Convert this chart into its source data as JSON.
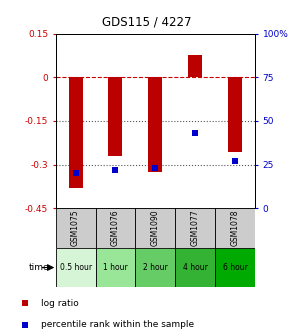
{
  "title": "GDS115 / 4227",
  "categories": [
    "GSM1075",
    "GSM1076",
    "GSM1090",
    "GSM1077",
    "GSM1078"
  ],
  "time_labels": [
    "0.5 hour",
    "1 hour",
    "2 hour",
    "4 hour",
    "6 hour"
  ],
  "time_colors": [
    "#d6f5d6",
    "#99e699",
    "#66cc66",
    "#33b233",
    "#00aa00"
  ],
  "log_ratios": [
    -0.38,
    -0.27,
    -0.325,
    0.075,
    -0.255
  ],
  "percentile_ranks": [
    20,
    22,
    23,
    43,
    27
  ],
  "bar_color": "#bb0000",
  "dot_color": "#0000cc",
  "left_ylim": [
    -0.45,
    0.15
  ],
  "right_ylim": [
    0,
    100
  ],
  "left_yticks": [
    0.15,
    0,
    -0.15,
    -0.3,
    -0.45
  ],
  "right_yticks": [
    100,
    75,
    50,
    25,
    0
  ],
  "hline_values": [
    0,
    -0.15,
    -0.3
  ],
  "hline_styles": [
    "--",
    ":",
    ":"
  ],
  "hline_colors": [
    "#cc0000",
    "#555555",
    "#555555"
  ],
  "bg_color": "#ffffff"
}
